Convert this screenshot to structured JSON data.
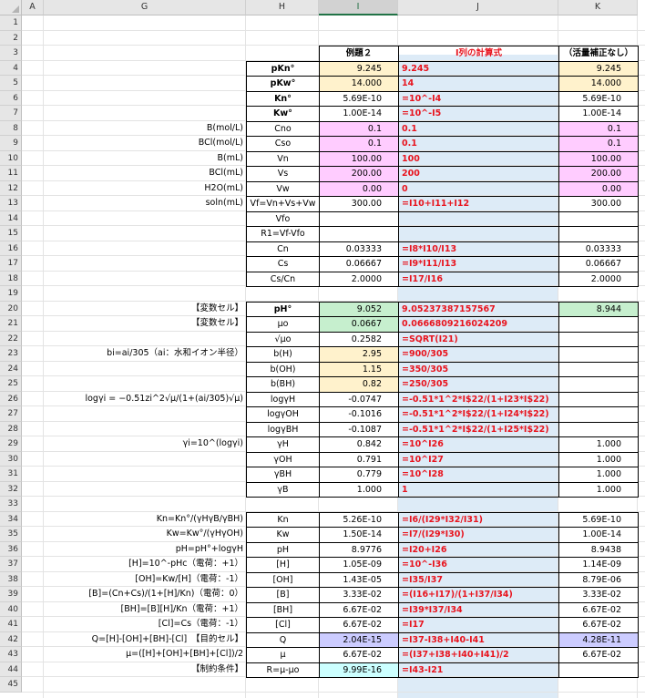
{
  "columns": [
    "A",
    "G",
    "H",
    "I",
    "J",
    "K"
  ],
  "selected_column": "I",
  "row_numbers": [
    "1",
    "2",
    "3",
    "4",
    "5",
    "6",
    "7",
    "8",
    "9",
    "10",
    "11",
    "12",
    "13",
    "14",
    "15",
    "16",
    "17",
    "18",
    "19",
    "20",
    "21",
    "22",
    "23",
    "24",
    "25",
    "26",
    "27",
    "28",
    "29",
    "30",
    "31",
    "32",
    "33",
    "34",
    "35",
    "36",
    "37",
    "38",
    "39",
    "40",
    "41",
    "42",
    "43",
    "44",
    "45"
  ],
  "header_row": {
    "I": "例題２",
    "J": "I列の計算式",
    "K": "（活量補正なし）"
  },
  "colors": {
    "yellow": "#fff2cc",
    "pink": "#ffccff",
    "green": "#c6efce",
    "lavender": "#ccccff",
    "cyan": "#ccffff",
    "formula_band": "#ddebf7",
    "formula_text": "#e8141e"
  },
  "rows": [
    {
      "row": "4",
      "G": "",
      "H": "pKn°",
      "H_bold": true,
      "I": "9.245",
      "I_fill": "y",
      "J": "9.245",
      "K": "9.245",
      "K_fill": "y"
    },
    {
      "row": "5",
      "G": "",
      "H": "pKw°",
      "H_bold": true,
      "I": "14.000",
      "I_fill": "y",
      "J": "14",
      "K": "14.000",
      "K_fill": "y"
    },
    {
      "row": "6",
      "G": "",
      "H": "Kn°",
      "H_bold": true,
      "I": "5.69E-10",
      "J": "=10^-I4",
      "K": "5.69E-10"
    },
    {
      "row": "7",
      "G": "",
      "H": "Kw°",
      "H_bold": true,
      "I": "1.00E-14",
      "J": "=10^-I5",
      "K": "1.00E-14"
    },
    {
      "row": "8",
      "G": "B(mol/L)",
      "H": "Cno",
      "I": "0.1",
      "I_fill": "p",
      "J": "0.1",
      "K": "0.1",
      "K_fill": "p"
    },
    {
      "row": "9",
      "G": "BCl(mol/L)",
      "H": "Cso",
      "I": "0.1",
      "I_fill": "p",
      "J": "0.1",
      "K": "0.1",
      "K_fill": "p"
    },
    {
      "row": "10",
      "G": "B(mL)",
      "H": "Vn",
      "I": "100.00",
      "I_fill": "p",
      "J": "100",
      "K": "100.00",
      "K_fill": "p"
    },
    {
      "row": "11",
      "G": "BCl(mL)",
      "H": "Vs",
      "I": "200.00",
      "I_fill": "p",
      "J": "200",
      "K": "200.00",
      "K_fill": "p"
    },
    {
      "row": "12",
      "G": "H2O(mL)",
      "H": "Vw",
      "I": "0.00",
      "I_fill": "p",
      "J": "0",
      "K": "0.00",
      "K_fill": "p"
    },
    {
      "row": "13",
      "G": "soln(mL)",
      "H": "Vf=Vn+Vs+Vw",
      "I": "300.00",
      "J": "=I10+I11+I12",
      "K": "300.00"
    },
    {
      "row": "14",
      "G": "",
      "H": "Vfo",
      "I": "",
      "J": "",
      "K": ""
    },
    {
      "row": "15",
      "G": "",
      "H": "R1=Vf-Vfo",
      "I": "",
      "J": "",
      "K": ""
    },
    {
      "row": "16",
      "G": "",
      "H": "Cn",
      "I": "0.03333",
      "J": "=I8*I10/I13",
      "K": "0.03333"
    },
    {
      "row": "17",
      "G": "",
      "H": "Cs",
      "I": "0.06667",
      "J": "=I9*I11/I13",
      "K": "0.06667"
    },
    {
      "row": "18",
      "G": "",
      "H": "Cs/Cn",
      "I": "2.0000",
      "J": "=I17/I16",
      "K": "2.0000"
    },
    {
      "row": "20",
      "G": "【変数セル】",
      "H": "pH°",
      "H_bold": true,
      "I": "9.052",
      "I_fill": "g",
      "J": "9.05237387157567",
      "K": "8.944",
      "K_fill": "g"
    },
    {
      "row": "21",
      "G": "【変数セル】",
      "H": "μo",
      "I": "0.0667",
      "I_fill": "g",
      "J": "0.0666809216024209",
      "K": "",
      "K_fill": "w"
    },
    {
      "row": "22",
      "G": "",
      "H": "√μo",
      "I": "0.2582",
      "J": "=SQRT(I21)",
      "K": "",
      "K_fill": "w"
    },
    {
      "row": "23",
      "G": "bi=ai/305（ai：水和イオン半径）",
      "H": "b(H)",
      "I": "2.95",
      "I_fill": "y",
      "J": "=900/305",
      "K": "",
      "K_fill": "w"
    },
    {
      "row": "24",
      "G": "",
      "H": "b(OH)",
      "I": "1.15",
      "I_fill": "y",
      "J": "=350/305",
      "K": "",
      "K_fill": "w"
    },
    {
      "row": "25",
      "G": "",
      "H": "b(BH)",
      "I": "0.82",
      "I_fill": "y",
      "J": "=250/305",
      "K": "",
      "K_fill": "w"
    },
    {
      "row": "26",
      "G": "logγi = −0.51zi^2√μ/(1+(ai/305)√μ)",
      "H": "logγH",
      "I": "-0.0747",
      "J": "=-0.51*1^2*I$22/(1+I23*I$22)",
      "K": "",
      "K_fill": "w"
    },
    {
      "row": "27",
      "G": "",
      "H": "logγOH",
      "I": "-0.1016",
      "J": "=-0.51*1^2*I$22/(1+I24*I$22)",
      "K": "",
      "K_fill": "w"
    },
    {
      "row": "28",
      "G": "",
      "H": "logγBH",
      "I": "-0.1087",
      "J": "=-0.51*1^2*I$22/(1+I25*I$22)",
      "K": "",
      "K_fill": "w"
    },
    {
      "row": "29",
      "G": "γi=10^(logγi)",
      "H": "γH",
      "I": "0.842",
      "J": "=10^I26",
      "K": "1.000",
      "K_fill": "w"
    },
    {
      "row": "30",
      "G": "",
      "H": "γOH",
      "I": "0.791",
      "J": "=10^I27",
      "K": "1.000",
      "K_fill": "w"
    },
    {
      "row": "31",
      "G": "",
      "H": "γBH",
      "I": "0.779",
      "J": "=10^I28",
      "K": "1.000",
      "K_fill": "w"
    },
    {
      "row": "32",
      "G": "",
      "H": "γB",
      "I": "1.000",
      "J": "1",
      "K": "1.000",
      "K_fill": "w"
    },
    {
      "row": "34",
      "G": "Kn=Kn°/(γHγB/γBH)",
      "H": "Kn",
      "I": "5.26E-10",
      "J": "=I6/(I29*I32/I31)",
      "K": "5.69E-10",
      "K_fill": "w"
    },
    {
      "row": "35",
      "G": "Kw=Kw°/(γHγOH)",
      "H": "Kw",
      "I": "1.50E-14",
      "J": "=I7/(I29*I30)",
      "K": "1.00E-14",
      "K_fill": "w"
    },
    {
      "row": "36",
      "G": "pH=pH°+logγH",
      "H": "pH",
      "I": "8.9776",
      "J": "=I20+I26",
      "K": "8.9438",
      "K_fill": "w"
    },
    {
      "row": "37",
      "G": "[H]=10^-pHc（電荷：+1）",
      "H": "[H]",
      "I": "1.05E-09",
      "J": "=10^-I36",
      "K": "1.14E-09",
      "K_fill": "w"
    },
    {
      "row": "38",
      "G": "[OH]=Kw/[H]（電荷：-1）",
      "H": "[OH]",
      "I": "1.43E-05",
      "J": "=I35/I37",
      "K": "8.79E-06",
      "K_fill": "w"
    },
    {
      "row": "39",
      "G": "[B]=(Cn+Cs)/(1+[H]/Kn)（電荷：0）",
      "H": "[B]",
      "I": "3.33E-02",
      "J": "=(I16+I17)/(1+I37/I34)",
      "K": "3.33E-02",
      "K_fill": "w"
    },
    {
      "row": "40",
      "G": "[BH]=[B][H]/Kn（電荷：+1）",
      "H": "[BH]",
      "I": "6.67E-02",
      "J": "=I39*I37/I34",
      "K": "6.67E-02",
      "K_fill": "w"
    },
    {
      "row": "41",
      "G": "[Cl]=Cs（電荷：-1）",
      "H": "[Cl]",
      "I": "6.67E-02",
      "J": "=I17",
      "K": "6.67E-02",
      "K_fill": "w"
    },
    {
      "row": "42",
      "G": "Q=[H]-[OH]+[BH]-[Cl]　【目的セル】",
      "H": "Q",
      "I": "2.04E-15",
      "I_fill": "v",
      "J": "=I37-I38+I40-I41",
      "K": "4.28E-11",
      "K_fill": "v"
    },
    {
      "row": "43",
      "G": "μ=([H]+[OH]+[BH]+[Cl])/2",
      "H": "μ",
      "I": "6.67E-02",
      "J": "=(I37+I38+I40+I41)/2",
      "K": "6.67E-02",
      "K_fill": "w"
    },
    {
      "row": "44",
      "G": "【制約条件】",
      "H": "R=μ-μo",
      "I": "9.99E-16",
      "I_fill": "cy",
      "J": "=I43-I21",
      "K": "",
      "K_fill": "w"
    }
  ]
}
